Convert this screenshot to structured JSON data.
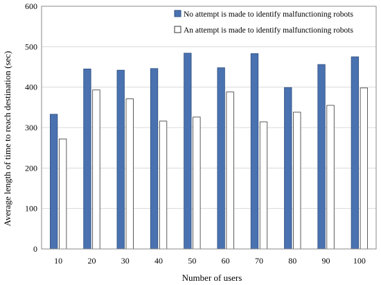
{
  "chart_data": {
    "type": "bar",
    "title": "",
    "xlabel": "Number of users",
    "ylabel": "Average length of time to reach destination (sec)",
    "categories": [
      "10",
      "20",
      "30",
      "40",
      "50",
      "60",
      "70",
      "80",
      "90",
      "100"
    ],
    "series": [
      {
        "name": "No attempt is made to identify malfunctioning robots",
        "color": "#4a72b0",
        "values": [
          333,
          445,
          442,
          446,
          484,
          448,
          483,
          399,
          456,
          475
        ]
      },
      {
        "name": "An attempt is made to identify malfunctioning robots",
        "color": "#ffffff",
        "values": [
          272,
          393,
          371,
          316,
          326,
          388,
          314,
          338,
          355,
          398
        ]
      }
    ],
    "ylim": [
      0,
      600
    ],
    "yticks": [
      "0",
      "100",
      "200",
      "300",
      "400",
      "500",
      "600"
    ],
    "grid": true,
    "legend_position": "top-right"
  }
}
